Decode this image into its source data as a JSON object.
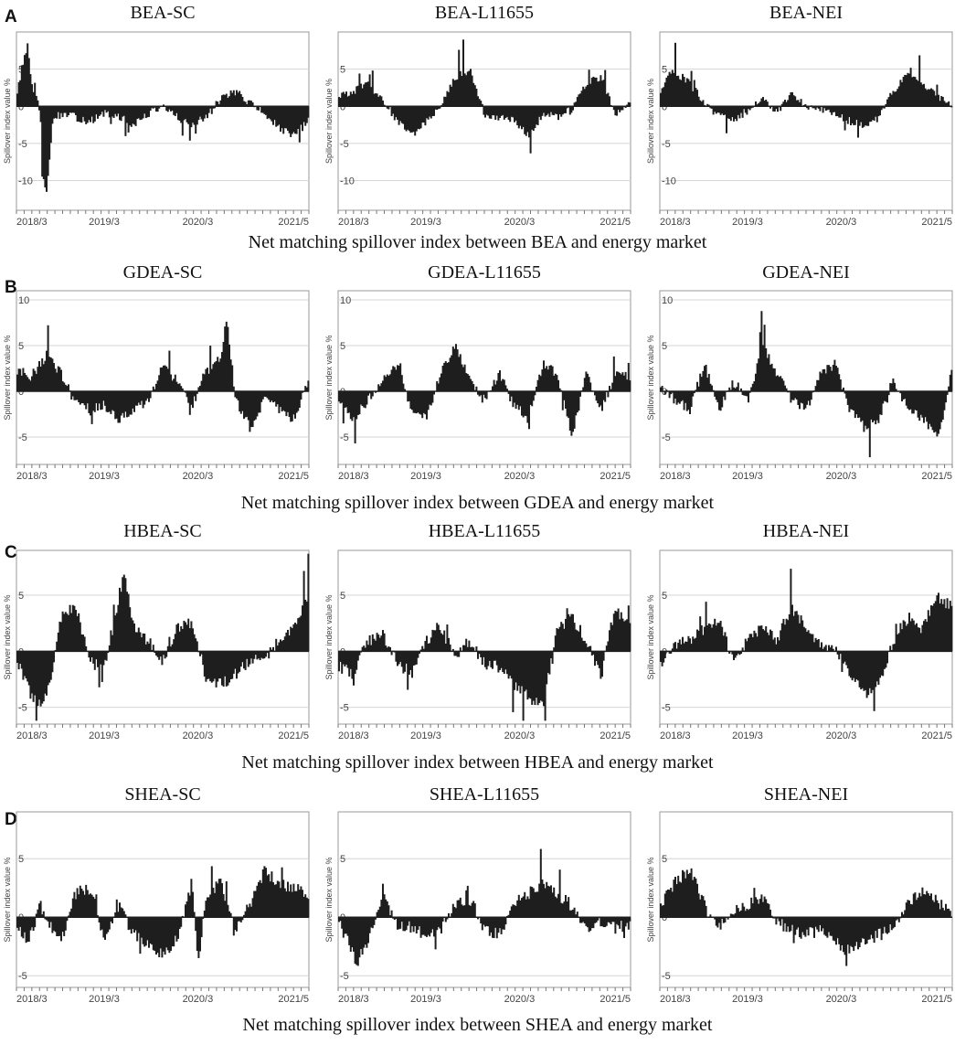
{
  "rows": [
    {
      "letter": "A",
      "caption": "Net matching spillover index between BEA and energy market",
      "titles": [
        "BEA-SC",
        "BEA-L11655",
        "BEA-NEI"
      ]
    },
    {
      "letter": "B",
      "caption": "Net matching spillover index between GDEA and energy market",
      "titles": [
        "GDEA-SC",
        "GDEA-L11655",
        "GDEA-NEI"
      ]
    },
    {
      "letter": "C",
      "caption": "Net matching spillover index between HBEA and energy market",
      "titles": [
        "HBEA-SC",
        "HBEA-L11655",
        "HBEA-NEI"
      ]
    },
    {
      "letter": "D",
      "caption": "Net matching spillover index between SHEA and energy market",
      "titles": [
        "SHEA-SC",
        "SHEA-L11655",
        "SHEA-NEI"
      ]
    }
  ],
  "chart_data": [
    {
      "type": "area",
      "title": "BEA-SC",
      "ylabel": "Spillover index value %",
      "x_ticks": [
        "2018/3",
        "2019/3",
        "2020/3",
        "2021/5"
      ],
      "y_ticks": [
        5,
        0,
        -5,
        -10
      ],
      "ylim": [
        -14,
        10
      ],
      "anchors": [
        [
          0,
          2
        ],
        [
          0.02,
          6
        ],
        [
          0.035,
          8
        ],
        [
          0.05,
          3
        ],
        [
          0.07,
          0.5
        ],
        [
          0.08,
          -2
        ],
        [
          0.085,
          -9
        ],
        [
          0.1,
          -12
        ],
        [
          0.11,
          -8
        ],
        [
          0.12,
          -2
        ],
        [
          0.15,
          -1
        ],
        [
          0.2,
          -1.5
        ],
        [
          0.25,
          -2
        ],
        [
          0.3,
          -1
        ],
        [
          0.35,
          -1.5
        ],
        [
          0.4,
          -2.5
        ],
        [
          0.45,
          -1
        ],
        [
          0.5,
          0
        ],
        [
          0.55,
          -1.5
        ],
        [
          0.6,
          -2.5
        ],
        [
          0.65,
          -1.5
        ],
        [
          0.7,
          1
        ],
        [
          0.75,
          2
        ],
        [
          0.8,
          0.5
        ],
        [
          0.85,
          -1
        ],
        [
          0.9,
          -3
        ],
        [
          0.95,
          -4
        ],
        [
          1,
          -2
        ]
      ]
    },
    {
      "type": "area",
      "title": "BEA-L11655",
      "ylabel": "Spillover index value %",
      "x_ticks": [
        "2018/3",
        "2019/3",
        "2020/3",
        "2021/5"
      ],
      "y_ticks": [
        5,
        0,
        -5,
        -10
      ],
      "ylim": [
        -14,
        10
      ],
      "anchors": [
        [
          0,
          1.5
        ],
        [
          0.05,
          2
        ],
        [
          0.1,
          3
        ],
        [
          0.15,
          1
        ],
        [
          0.2,
          -2
        ],
        [
          0.25,
          -4
        ],
        [
          0.3,
          -2
        ],
        [
          0.35,
          0
        ],
        [
          0.4,
          4
        ],
        [
          0.45,
          5
        ],
        [
          0.5,
          -1
        ],
        [
          0.55,
          -1.5
        ],
        [
          0.6,
          -2
        ],
        [
          0.65,
          -4
        ],
        [
          0.7,
          -1
        ],
        [
          0.75,
          -1.5
        ],
        [
          0.8,
          -0.5
        ],
        [
          0.85,
          3
        ],
        [
          0.9,
          4
        ],
        [
          0.95,
          -1
        ],
        [
          1,
          0.5
        ]
      ]
    },
    {
      "type": "area",
      "title": "BEA-NEI",
      "ylabel": "Spillover index value %",
      "x_ticks": [
        "2018/3",
        "2019/3",
        "2020/3",
        "2021/5"
      ],
      "y_ticks": [
        5,
        0,
        -5,
        -10
      ],
      "ylim": [
        -14,
        10
      ],
      "anchors": [
        [
          0,
          2
        ],
        [
          0.04,
          5
        ],
        [
          0.1,
          3
        ],
        [
          0.15,
          0.5
        ],
        [
          0.2,
          -1
        ],
        [
          0.25,
          -2
        ],
        [
          0.3,
          -0.5
        ],
        [
          0.35,
          1
        ],
        [
          0.4,
          -1
        ],
        [
          0.45,
          2
        ],
        [
          0.5,
          0
        ],
        [
          0.55,
          -0.5
        ],
        [
          0.6,
          -1
        ],
        [
          0.65,
          -2
        ],
        [
          0.7,
          -2.5
        ],
        [
          0.75,
          -1.5
        ],
        [
          0.8,
          2
        ],
        [
          0.85,
          5
        ],
        [
          0.9,
          3
        ],
        [
          0.95,
          1.5
        ],
        [
          1,
          0.2
        ]
      ]
    },
    {
      "type": "area",
      "title": "GDEA-SC",
      "ylabel": "Spillover index value %",
      "x_ticks": [
        "2018/3",
        "2019/3",
        "2020/3",
        "2021/5"
      ],
      "y_ticks": [
        10,
        5,
        0,
        -5
      ],
      "ylim": [
        -8,
        11
      ],
      "anchors": [
        [
          0,
          2
        ],
        [
          0.05,
          1.5
        ],
        [
          0.1,
          4
        ],
        [
          0.15,
          2
        ],
        [
          0.2,
          -1
        ],
        [
          0.25,
          -2
        ],
        [
          0.3,
          -1.5
        ],
        [
          0.35,
          -3
        ],
        [
          0.4,
          -2
        ],
        [
          0.45,
          -1
        ],
        [
          0.5,
          3
        ],
        [
          0.55,
          1
        ],
        [
          0.6,
          -1.5
        ],
        [
          0.65,
          2
        ],
        [
          0.7,
          4
        ],
        [
          0.72,
          8
        ],
        [
          0.75,
          -1
        ],
        [
          0.8,
          -4
        ],
        [
          0.85,
          -1
        ],
        [
          0.9,
          -2
        ],
        [
          0.95,
          -3
        ],
        [
          1,
          1
        ]
      ]
    },
    {
      "type": "area",
      "title": "GDEA-L11655",
      "ylabel": "Spillover index value %",
      "x_ticks": [
        "2018/3",
        "2019/3",
        "2020/3",
        "2021/5"
      ],
      "y_ticks": [
        10,
        5,
        0,
        -5
      ],
      "ylim": [
        -8,
        11
      ],
      "anchors": [
        [
          0,
          -1
        ],
        [
          0.05,
          -3
        ],
        [
          0.1,
          -1
        ],
        [
          0.15,
          1
        ],
        [
          0.2,
          3
        ],
        [
          0.25,
          -2
        ],
        [
          0.3,
          -3
        ],
        [
          0.35,
          2
        ],
        [
          0.4,
          5
        ],
        [
          0.45,
          1
        ],
        [
          0.5,
          -1
        ],
        [
          0.55,
          2
        ],
        [
          0.6,
          -1.5
        ],
        [
          0.65,
          -3
        ],
        [
          0.7,
          3
        ],
        [
          0.75,
          2
        ],
        [
          0.8,
          -5
        ],
        [
          0.85,
          2
        ],
        [
          0.9,
          -2
        ],
        [
          0.95,
          2
        ],
        [
          1,
          1.5
        ]
      ]
    },
    {
      "type": "area",
      "title": "GDEA-NEI",
      "ylabel": "Spillover index value %",
      "x_ticks": [
        "2018/3",
        "2019/3",
        "2020/3",
        "2021/5"
      ],
      "y_ticks": [
        10,
        5,
        0,
        -5
      ],
      "ylim": [
        -8,
        11
      ],
      "anchors": [
        [
          0,
          0.5
        ],
        [
          0.05,
          -1
        ],
        [
          0.1,
          -2
        ],
        [
          0.15,
          3
        ],
        [
          0.2,
          -2
        ],
        [
          0.25,
          1
        ],
        [
          0.3,
          -1
        ],
        [
          0.35,
          5
        ],
        [
          0.4,
          2
        ],
        [
          0.45,
          -1
        ],
        [
          0.5,
          -2
        ],
        [
          0.55,
          2
        ],
        [
          0.6,
          3
        ],
        [
          0.65,
          -2
        ],
        [
          0.7,
          -4
        ],
        [
          0.75,
          -3
        ],
        [
          0.8,
          1
        ],
        [
          0.85,
          -2
        ],
        [
          0.9,
          -3
        ],
        [
          0.95,
          -5
        ],
        [
          1,
          2
        ]
      ]
    },
    {
      "type": "area",
      "title": "HBEA-SC",
      "ylabel": "Spillover index value %",
      "x_ticks": [
        "2018/3",
        "2019/3",
        "2020/3",
        "2021/5"
      ],
      "y_ticks": [
        5,
        0,
        -5
      ],
      "ylim": [
        -6.5,
        9
      ],
      "anchors": [
        [
          0,
          -1
        ],
        [
          0.05,
          -4
        ],
        [
          0.08,
          -5
        ],
        [
          0.12,
          -2
        ],
        [
          0.15,
          3
        ],
        [
          0.2,
          4
        ],
        [
          0.25,
          -1
        ],
        [
          0.3,
          -1.5
        ],
        [
          0.35,
          5
        ],
        [
          0.37,
          7
        ],
        [
          0.4,
          2
        ],
        [
          0.45,
          1
        ],
        [
          0.5,
          -1
        ],
        [
          0.55,
          2
        ],
        [
          0.6,
          2.5
        ],
        [
          0.65,
          -2.5
        ],
        [
          0.7,
          -3
        ],
        [
          0.75,
          -2
        ],
        [
          0.8,
          -1
        ],
        [
          0.85,
          -0.5
        ],
        [
          0.9,
          1
        ],
        [
          0.95,
          2
        ],
        [
          1,
          5
        ]
      ]
    },
    {
      "type": "area",
      "title": "HBEA-L11655",
      "ylabel": "Spillover index value %",
      "x_ticks": [
        "2018/3",
        "2019/3",
        "2020/3",
        "2021/5"
      ],
      "y_ticks": [
        5,
        0,
        -5
      ],
      "ylim": [
        -6.5,
        9
      ],
      "anchors": [
        [
          0,
          -1
        ],
        [
          0.05,
          -2
        ],
        [
          0.1,
          1
        ],
        [
          0.15,
          1.5
        ],
        [
          0.2,
          -1
        ],
        [
          0.25,
          -2
        ],
        [
          0.3,
          1
        ],
        [
          0.35,
          2
        ],
        [
          0.4,
          -0.5
        ],
        [
          0.45,
          1
        ],
        [
          0.5,
          -1
        ],
        [
          0.55,
          -1.5
        ],
        [
          0.6,
          -3
        ],
        [
          0.65,
          -4
        ],
        [
          0.7,
          -5
        ],
        [
          0.75,
          2
        ],
        [
          0.8,
          3
        ],
        [
          0.85,
          1
        ],
        [
          0.9,
          -2
        ],
        [
          0.95,
          4
        ],
        [
          1,
          2
        ]
      ]
    },
    {
      "type": "area",
      "title": "HBEA-NEI",
      "ylabel": "Spillover index value %",
      "x_ticks": [
        "2018/3",
        "2019/3",
        "2020/3",
        "2021/5"
      ],
      "y_ticks": [
        5,
        0,
        -5
      ],
      "ylim": [
        -6.5,
        9
      ],
      "anchors": [
        [
          0,
          -1
        ],
        [
          0.05,
          0.5
        ],
        [
          0.1,
          1
        ],
        [
          0.15,
          2
        ],
        [
          0.2,
          3
        ],
        [
          0.25,
          -1
        ],
        [
          0.3,
          1
        ],
        [
          0.35,
          2
        ],
        [
          0.4,
          1
        ],
        [
          0.45,
          4
        ],
        [
          0.5,
          2
        ],
        [
          0.55,
          0.5
        ],
        [
          0.6,
          0.2
        ],
        [
          0.65,
          -2
        ],
        [
          0.7,
          -4
        ],
        [
          0.75,
          -3
        ],
        [
          0.8,
          1
        ],
        [
          0.85,
          3
        ],
        [
          0.9,
          2
        ],
        [
          0.95,
          5
        ],
        [
          1,
          4
        ]
      ]
    },
    {
      "type": "area",
      "title": "SHEA-SC",
      "ylabel": "Spillover index value %",
      "x_ticks": [
        "2018/3",
        "2019/3",
        "2020/3",
        "2021/5"
      ],
      "y_ticks": [
        5,
        0,
        -5
      ],
      "ylim": [
        -6,
        9
      ],
      "anchors": [
        [
          0,
          -1
        ],
        [
          0.04,
          -2
        ],
        [
          0.08,
          1
        ],
        [
          0.12,
          -1
        ],
        [
          0.15,
          -2
        ],
        [
          0.2,
          2
        ],
        [
          0.25,
          2.5
        ],
        [
          0.3,
          -2
        ],
        [
          0.35,
          1
        ],
        [
          0.4,
          -1.5
        ],
        [
          0.45,
          -2.5
        ],
        [
          0.5,
          -3
        ],
        [
          0.55,
          -2
        ],
        [
          0.6,
          3
        ],
        [
          0.62,
          -4
        ],
        [
          0.65,
          2
        ],
        [
          0.7,
          3
        ],
        [
          0.75,
          -1
        ],
        [
          0.8,
          1
        ],
        [
          0.85,
          4
        ],
        [
          0.9,
          3
        ],
        [
          0.95,
          2.5
        ],
        [
          1,
          2
        ]
      ]
    },
    {
      "type": "area",
      "title": "SHEA-L11655",
      "ylabel": "Spillover index value %",
      "x_ticks": [
        "2018/3",
        "2019/3",
        "2020/3",
        "2021/5"
      ],
      "y_ticks": [
        5,
        0,
        -5
      ],
      "ylim": [
        -6,
        9
      ],
      "anchors": [
        [
          0,
          -0.5
        ],
        [
          0.03,
          -2
        ],
        [
          0.06,
          -4
        ],
        [
          0.1,
          -2
        ],
        [
          0.15,
          2
        ],
        [
          0.2,
          -0.5
        ],
        [
          0.25,
          -1
        ],
        [
          0.3,
          -1.5
        ],
        [
          0.35,
          -1
        ],
        [
          0.4,
          1
        ],
        [
          0.45,
          1.5
        ],
        [
          0.5,
          -1
        ],
        [
          0.55,
          -1.5
        ],
        [
          0.6,
          1
        ],
        [
          0.65,
          2
        ],
        [
          0.7,
          3
        ],
        [
          0.75,
          2
        ],
        [
          0.8,
          1
        ],
        [
          0.85,
          -1
        ],
        [
          0.9,
          -0.5
        ],
        [
          0.95,
          -1
        ],
        [
          1,
          -0.5
        ]
      ]
    },
    {
      "type": "area",
      "title": "SHEA-NEI",
      "ylabel": "Spillover index value %",
      "x_ticks": [
        "2018/3",
        "2019/3",
        "2020/3",
        "2021/5"
      ],
      "y_ticks": [
        5,
        0,
        -5
      ],
      "ylim": [
        -6,
        9
      ],
      "anchors": [
        [
          0,
          1
        ],
        [
          0.05,
          3
        ],
        [
          0.1,
          4
        ],
        [
          0.15,
          1
        ],
        [
          0.2,
          -1
        ],
        [
          0.25,
          0.5
        ],
        [
          0.3,
          1
        ],
        [
          0.35,
          1.5
        ],
        [
          0.4,
          -0.5
        ],
        [
          0.45,
          -1
        ],
        [
          0.5,
          -1.5
        ],
        [
          0.55,
          -1
        ],
        [
          0.6,
          -2
        ],
        [
          0.65,
          -3
        ],
        [
          0.7,
          -2
        ],
        [
          0.75,
          -1.5
        ],
        [
          0.8,
          -1
        ],
        [
          0.85,
          1.5
        ],
        [
          0.9,
          2
        ],
        [
          0.95,
          1.5
        ],
        [
          1,
          0.2
        ]
      ]
    }
  ]
}
